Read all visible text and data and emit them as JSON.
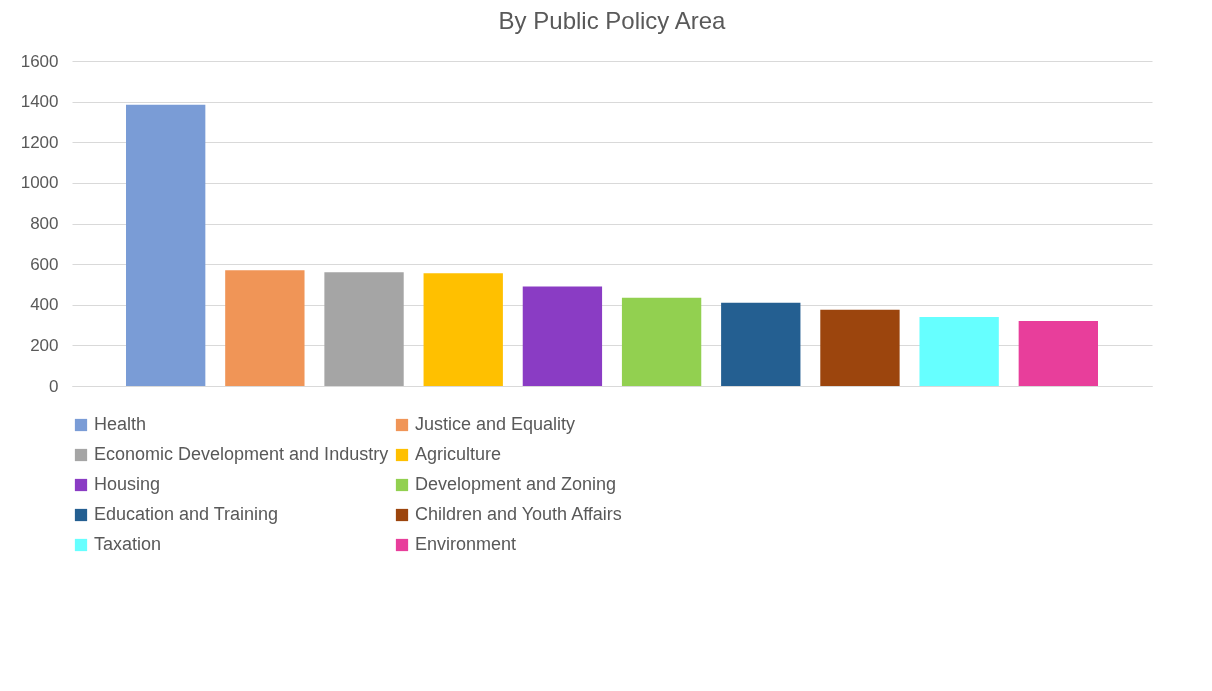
{
  "chart_data": {
    "type": "bar",
    "title": "By Public Policy Area",
    "categories": [
      null
    ],
    "series": [
      {
        "name": "Health",
        "color": "#7a9cd6",
        "values": [
          1385
        ]
      },
      {
        "name": "Justice and Equality",
        "color": "#f09557",
        "values": [
          570
        ]
      },
      {
        "name": "Economic Development and Industry",
        "color": "#a5a5a5",
        "values": [
          560
        ]
      },
      {
        "name": "Agriculture",
        "color": "#ffc000",
        "values": [
          555
        ]
      },
      {
        "name": "Housing",
        "color": "#8a3cc4",
        "values": [
          490
        ]
      },
      {
        "name": "Development and Zoning",
        "color": "#92d050",
        "values": [
          435
        ]
      },
      {
        "name": "Education and Training",
        "color": "#245f91",
        "values": [
          410
        ]
      },
      {
        "name": "Children and Youth Affairs",
        "color": "#9c450d",
        "values": [
          375
        ]
      },
      {
        "name": "Taxation",
        "color": "#66ffff",
        "values": [
          340
        ]
      },
      {
        "name": "Environment",
        "color": "#e83e9b",
        "values": [
          320
        ]
      }
    ],
    "ylim": [
      0,
      1600
    ],
    "yticks": [
      0,
      200,
      400,
      600,
      800,
      1000,
      1200,
      1400,
      1600
    ],
    "grid": "y",
    "legend": "bottom"
  }
}
